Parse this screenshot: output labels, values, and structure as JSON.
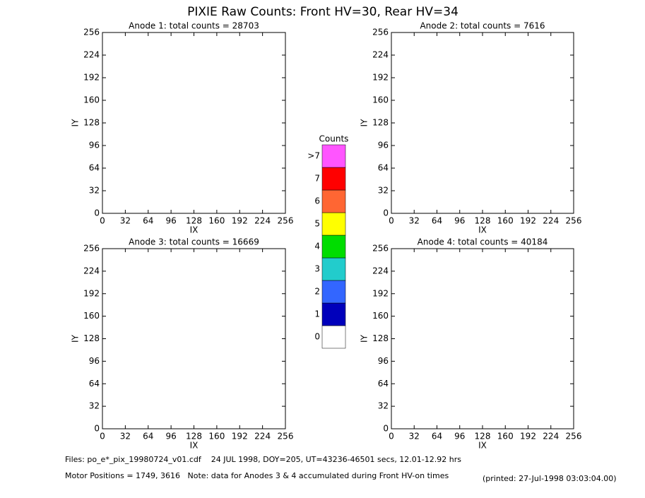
{
  "title": "PIXIE Raw Counts:  Front HV=30, Rear HV=34",
  "footer": [
    "Files: po_e*_pix_19980724_v01.cdf    24 JUL 1998, DOY=205, UT=43236-46501 secs, 12.01-12.92 hrs",
    "Motor Positions = 1749, 3616   Note: data for Anodes 3 & 4 accumulated during Front HV-on times"
  ],
  "printed": "(printed: 27-Jul-1998 03:03:04.00)",
  "colorbar": {
    "title": "Counts",
    "levels": [
      {
        "label": "0",
        "color": "#ffffff"
      },
      {
        "label": "1",
        "color": "#0000bb"
      },
      {
        "label": "2",
        "color": "#3366ff"
      },
      {
        "label": "3",
        "color": "#22cccc"
      },
      {
        "label": "4",
        "color": "#00dd00"
      },
      {
        "label": "5",
        "color": "#ffff00"
      },
      {
        "label": "6",
        "color": "#ff6633"
      },
      {
        "label": "7",
        "color": "#ff0000"
      },
      {
        "label": ">7",
        "color": "#ff55ff"
      }
    ]
  },
  "chart_data": [
    {
      "type": "heatmap",
      "title": "Anode 1: total counts = 28703",
      "xlabel": "IX",
      "ylabel": "IY",
      "xlim": [
        0,
        256
      ],
      "ylim": [
        0,
        256
      ],
      "xticks": [
        0,
        32,
        64,
        96,
        128,
        160,
        192,
        224,
        256
      ],
      "yticks": [
        0,
        32,
        64,
        96,
        128,
        160,
        192,
        224,
        256
      ]
    },
    {
      "type": "heatmap",
      "title": "Anode 2: total counts = 7616",
      "xlabel": "IX",
      "ylabel": "IY",
      "xlim": [
        0,
        256
      ],
      "ylim": [
        0,
        256
      ],
      "xticks": [
        0,
        32,
        64,
        96,
        128,
        160,
        192,
        224,
        256
      ],
      "yticks": [
        0,
        32,
        64,
        96,
        128,
        160,
        192,
        224,
        256
      ]
    },
    {
      "type": "heatmap",
      "title": "Anode 3: total counts = 16669",
      "xlabel": "IX",
      "ylabel": "IY",
      "xlim": [
        0,
        256
      ],
      "ylim": [
        0,
        256
      ],
      "xticks": [
        0,
        32,
        64,
        96,
        128,
        160,
        192,
        224,
        256
      ],
      "yticks": [
        0,
        32,
        64,
        96,
        128,
        160,
        192,
        224,
        256
      ]
    },
    {
      "type": "heatmap",
      "title": "Anode 4: total counts = 40184",
      "xlabel": "IX",
      "ylabel": "IY",
      "xlim": [
        0,
        256
      ],
      "ylim": [
        0,
        256
      ],
      "xticks": [
        0,
        32,
        64,
        96,
        128,
        160,
        192,
        224,
        256
      ],
      "yticks": [
        0,
        32,
        64,
        96,
        128,
        160,
        192,
        224,
        256
      ]
    }
  ]
}
